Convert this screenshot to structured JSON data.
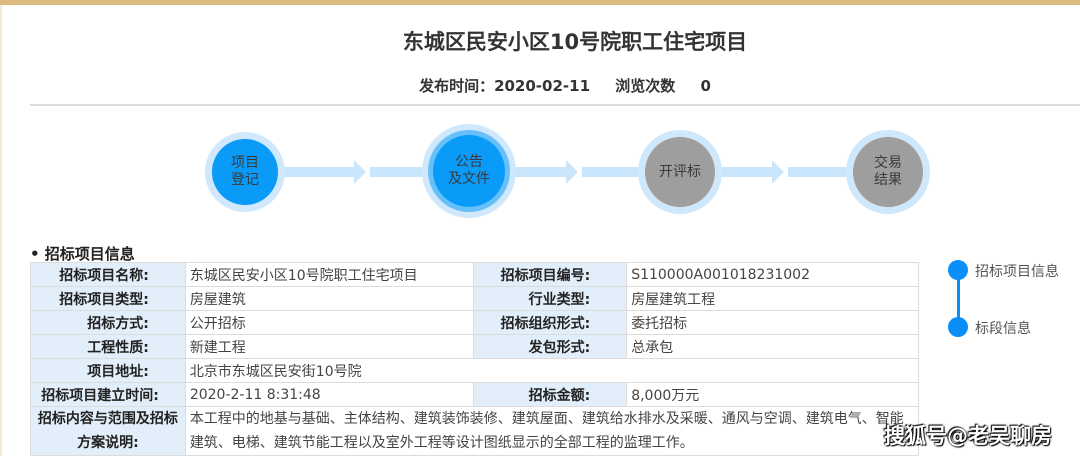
{
  "header": {
    "title": "东城区民安小区10号院职工住宅项目",
    "publish_label": "发布时间：2020-02-11",
    "views_label": "浏览次数",
    "views_count": "0"
  },
  "progress": {
    "steps": [
      {
        "label_line1": "项目",
        "label_line2": "登记",
        "state": "done",
        "color": "#0a9af7"
      },
      {
        "label_line1": "公告",
        "label_line2": "及文件",
        "state": "current",
        "color": "#0a9af7"
      },
      {
        "label_line1": "开评标",
        "label_line2": "",
        "state": "pending",
        "color": "#9e9e9e"
      },
      {
        "label_line1": "交易",
        "label_line2": "结果",
        "state": "pending",
        "color": "#9e9e9e"
      }
    ]
  },
  "section_title": "• 招标项目信息",
  "table": {
    "rows": [
      {
        "l1": "招标项目名称:",
        "v1": "东城区民安小区10号院职工住宅项目",
        "l2": "招标项目编号:",
        "v2": "S110000A001018231002"
      },
      {
        "l1": "招标项目类型:",
        "v1": "房屋建筑",
        "l2": "行业类型:",
        "v2": "房屋建筑工程"
      },
      {
        "l1": "招标方式:",
        "v1": "公开招标",
        "l2": "招标组织形式:",
        "v2": "委托招标"
      },
      {
        "l1": "工程性质:",
        "v1": "新建工程",
        "l2": "发包形式:",
        "v2": "总承包"
      },
      {
        "l1": "项目地址:",
        "v1": "北京市东城区民安街10号院"
      },
      {
        "l1": "招标项目建立时间:",
        "v1": "2020-2-11 8:31:48",
        "l2": "招标金额:",
        "v2": "8,000万元"
      }
    ],
    "scope": {
      "label_line1": "招标内容与范围及招标",
      "label_line2": "方案说明:",
      "value": "本工程中的地基与基础、主体结构、建筑装饰装修、建筑屋面、建筑给水排水及采暖、通风与空调、建筑电气、智能建筑、电梯、建筑节能工程以及室外工程等设计图纸显示的全部工程的监理工作。"
    }
  },
  "side_nav": {
    "items": [
      {
        "label": "招标项目信息"
      },
      {
        "label": "标段信息"
      }
    ]
  },
  "watermark": "搜狐号@老吴聊房",
  "colors": {
    "accent": "#0a9af7",
    "pending": "#9e9e9e",
    "label_bg": "#e2effa",
    "top_bar": "#dcb97f"
  }
}
